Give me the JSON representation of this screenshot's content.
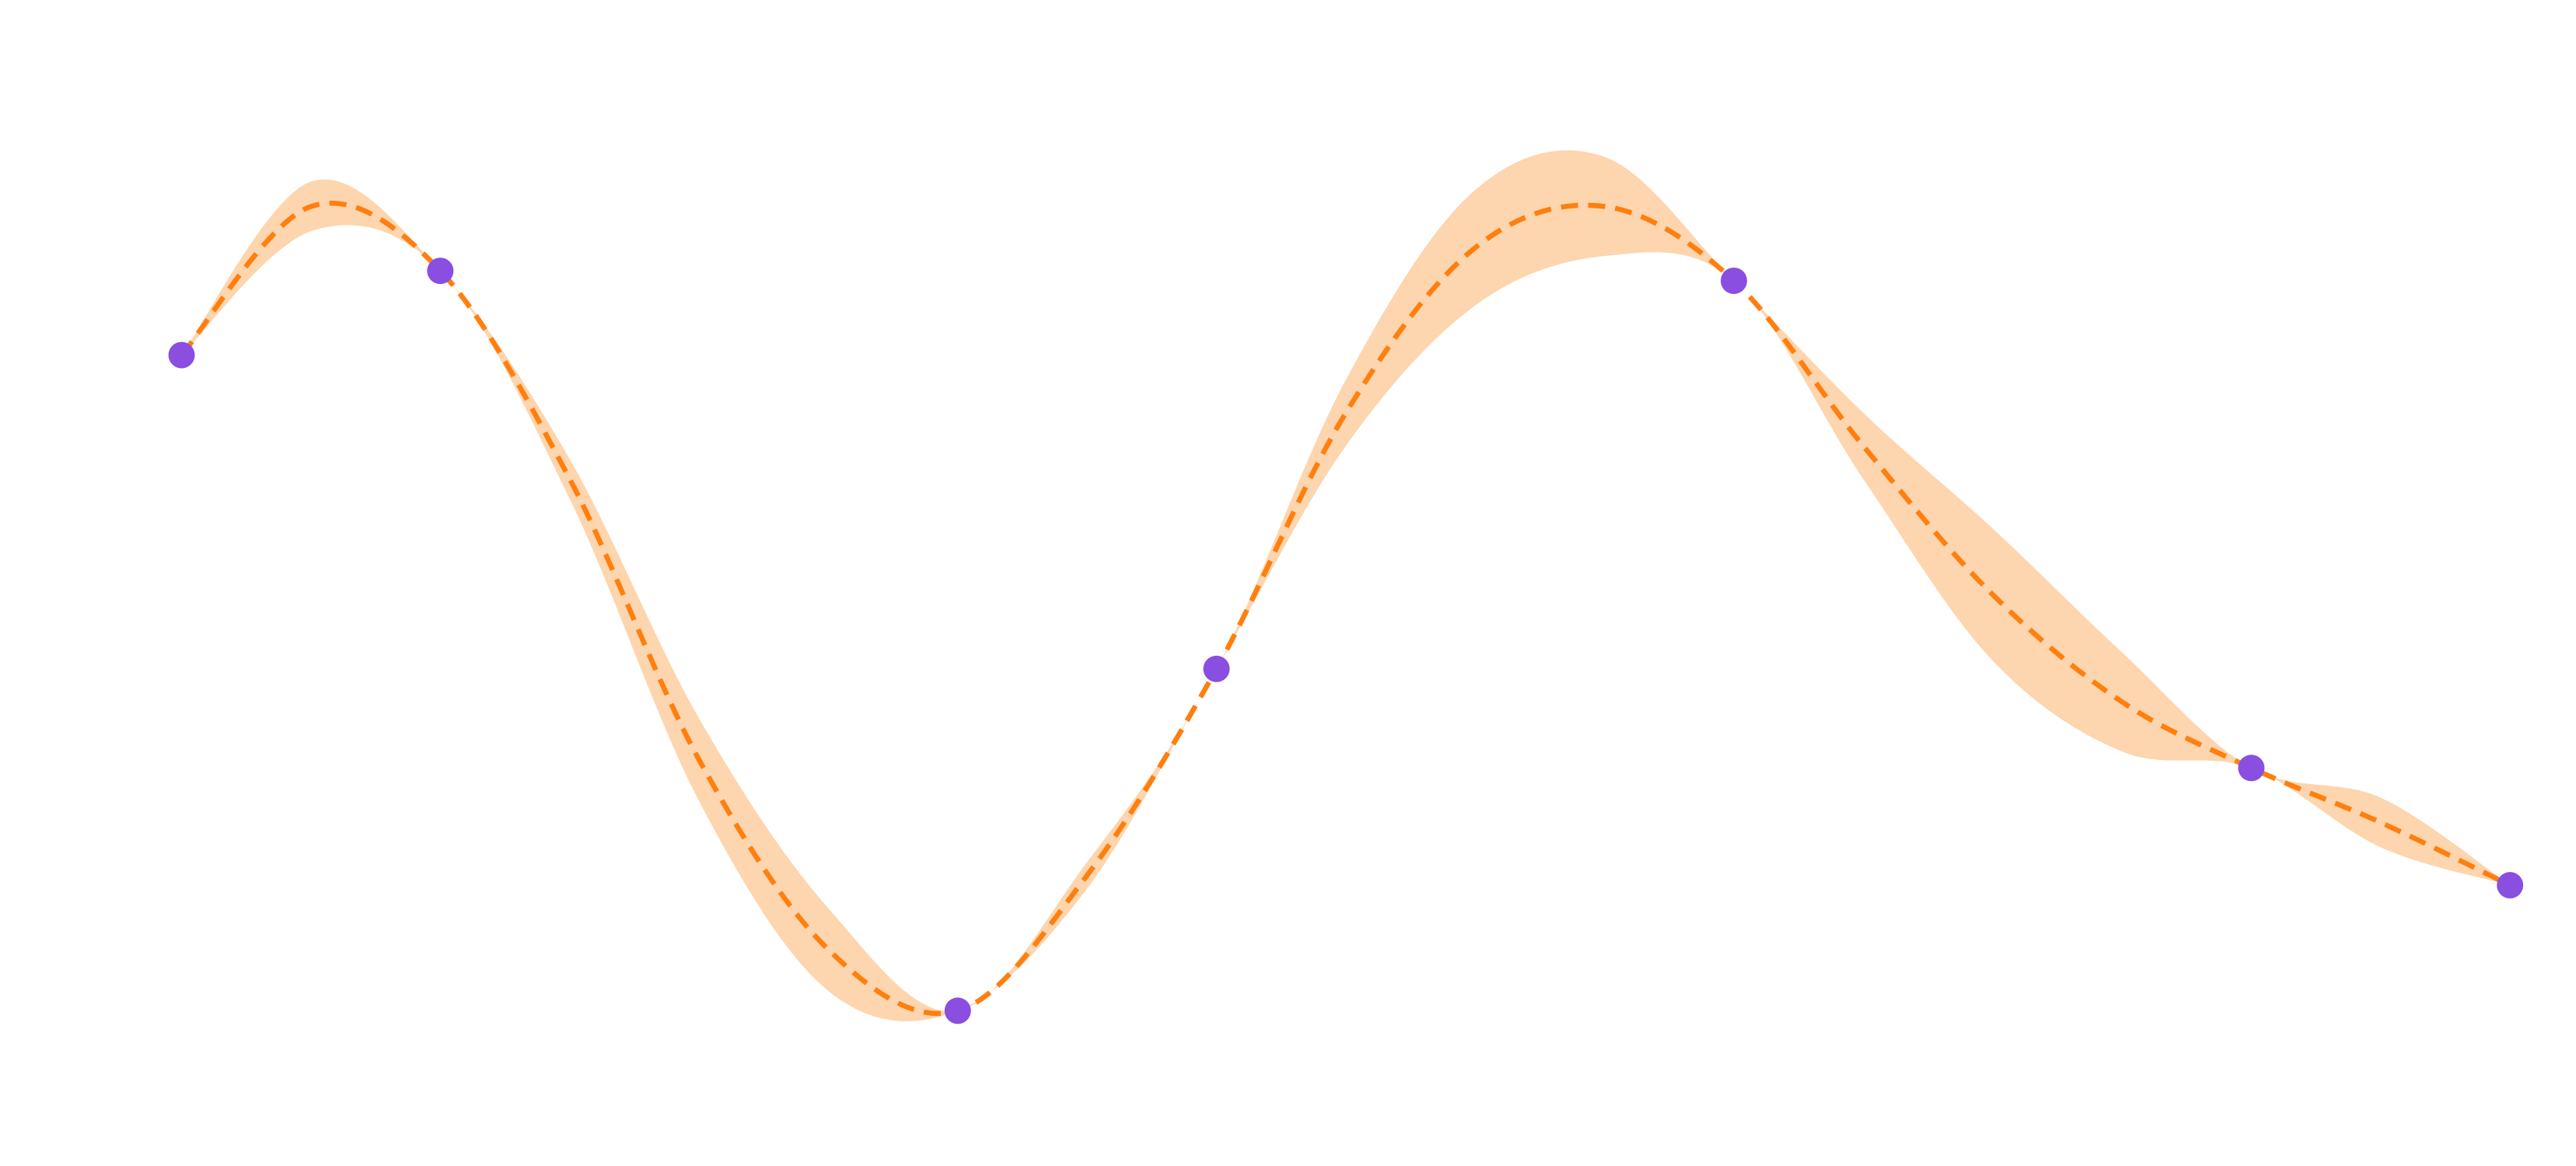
{
  "chart_data": {
    "type": "line",
    "xlim": [
      -0.702,
      9.255
    ],
    "ylim": [
      -3.01,
      4.05
    ],
    "x": [
      0,
      0.5,
      1,
      1.5,
      2,
      2.5,
      3,
      3.5,
      4,
      4.5,
      5,
      5.5,
      6,
      6.5,
      7,
      7.5,
      8,
      8.5,
      9
    ],
    "mean": {
      "color": "#ff7f0e",
      "values": [
        1.9,
        2.8,
        2.41,
        1.15,
        -0.55,
        -1.7,
        -2.07,
        -1.25,
        0,
        1.55,
        2.55,
        2.8,
        2.35,
        1.35,
        0.45,
        -0.2,
        -0.6,
        -0.93,
        -1.31
      ]
    },
    "band": {
      "color": "#fdd5ae",
      "upper": [
        1.9,
        2.95,
        2.41,
        1.27,
        -0.3,
        -1.45,
        -2.07,
        -1.17,
        0,
        1.75,
        2.9,
        3.1,
        2.35,
        1.55,
        0.85,
        0.1,
        -0.6,
        -0.78,
        -1.31
      ],
      "lower": [
        1.9,
        2.65,
        2.41,
        1.03,
        -0.8,
        -1.95,
        -2.07,
        -1.33,
        0,
        1.35,
        2.2,
        2.5,
        2.35,
        1.15,
        0.05,
        -0.5,
        -0.6,
        -1.08,
        -1.31
      ]
    },
    "points": {
      "color": "#8a4ee0",
      "x": [
        0,
        1,
        3,
        4,
        6,
        8,
        9
      ],
      "y": [
        1.9,
        2.41,
        -2.07,
        0,
        2.35,
        -0.6,
        -1.31
      ]
    }
  }
}
